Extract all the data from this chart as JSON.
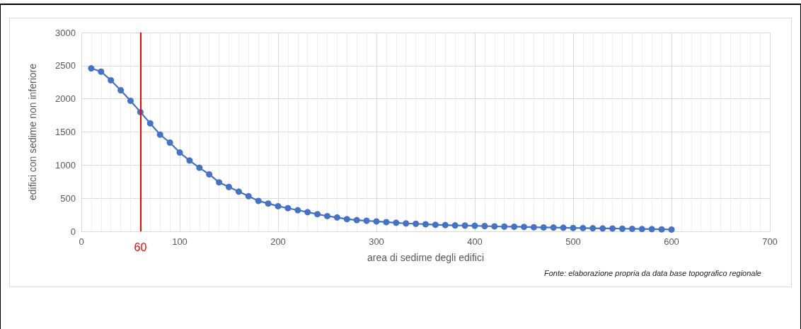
{
  "chart_data": {
    "type": "line",
    "xlabel": "area di sedime degli edifici",
    "ylabel": "edifici con sedime non inferiore",
    "annotations": [
      "Fonte: elaborazione propria da data base topografico regionale"
    ],
    "x": [
      10,
      20,
      30,
      40,
      50,
      60,
      70,
      80,
      90,
      100,
      110,
      120,
      130,
      140,
      150,
      160,
      170,
      180,
      190,
      200,
      210,
      220,
      230,
      240,
      250,
      260,
      270,
      280,
      290,
      300,
      310,
      320,
      330,
      340,
      350,
      360,
      370,
      380,
      390,
      400,
      410,
      420,
      430,
      440,
      450,
      460,
      470,
      480,
      490,
      500,
      510,
      520,
      530,
      540,
      550,
      560,
      570,
      580,
      590,
      600
    ],
    "series": [
      {
        "color": "#4472c4",
        "values": [
          2460,
          2410,
          2280,
          2130,
          1970,
          1800,
          1630,
          1460,
          1340,
          1190,
          1070,
          960,
          860,
          740,
          670,
          600,
          530,
          460,
          420,
          380,
          350,
          320,
          290,
          260,
          230,
          210,
          185,
          170,
          160,
          150,
          140,
          130,
          120,
          115,
          108,
          100,
          95,
          90,
          88,
          85,
          80,
          75,
          72,
          70,
          68,
          62,
          60,
          58,
          55,
          52,
          50,
          47,
          45,
          43,
          40,
          38,
          36,
          34,
          30,
          28
        ]
      }
    ],
    "xlim": [
      0,
      700
    ],
    "xticks": [
      0,
      100,
      200,
      300,
      400,
      500,
      600,
      700
    ],
    "ylim": [
      0,
      3000
    ],
    "yticks": [
      0,
      500,
      1000,
      1500,
      2000,
      2500,
      3000
    ],
    "grid": true,
    "marker": "circle",
    "line_style": "solid",
    "ref_lines": [
      {
        "axis": "x",
        "value": 60,
        "label": "60",
        "color": "#ff0000"
      }
    ]
  }
}
